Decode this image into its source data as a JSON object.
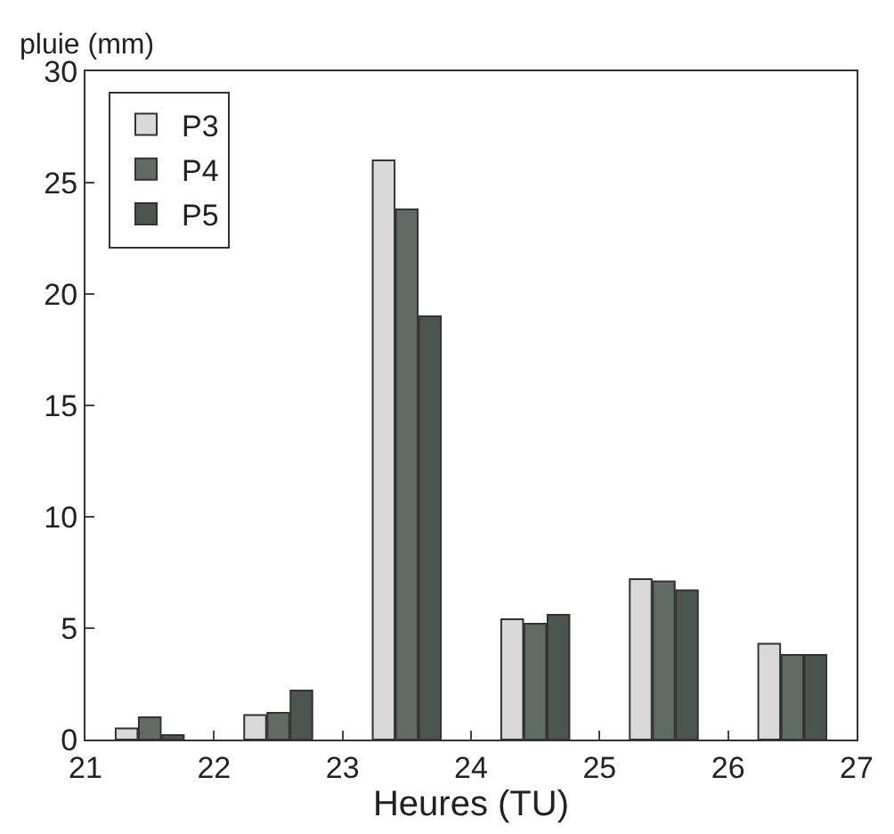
{
  "chart_data": {
    "type": "bar",
    "xlabel": "Heures (TU)",
    "ylabel": "pluie (mm)",
    "xlim": [
      21,
      27
    ],
    "xticks": [
      21,
      22,
      23,
      24,
      25,
      26,
      27
    ],
    "ylim": [
      0,
      30
    ],
    "yticks": [
      0,
      5,
      10,
      15,
      20,
      25,
      30
    ],
    "legend": "top left",
    "series": [
      {
        "name": "P3",
        "color": "#d9d9d9",
        "x": [
          21.32,
          22.32,
          23.32,
          24.32,
          25.32,
          26.32
        ],
        "values": [
          0.5,
          1.1,
          26,
          5.4,
          7.2,
          4.3
        ]
      },
      {
        "name": "P4",
        "color": "#5f6b64",
        "x": [
          21.5,
          22.5,
          23.5,
          24.5,
          25.5,
          26.5
        ],
        "values": [
          1.0,
          1.2,
          23.8,
          5.2,
          7.1,
          3.8
        ]
      },
      {
        "name": "P5",
        "color": "#4a5550",
        "x": [
          21.68,
          22.68,
          23.68,
          24.68,
          25.68,
          26.68
        ],
        "values": [
          0.2,
          2.2,
          19,
          5.6,
          6.7,
          3.8
        ]
      }
    ]
  }
}
